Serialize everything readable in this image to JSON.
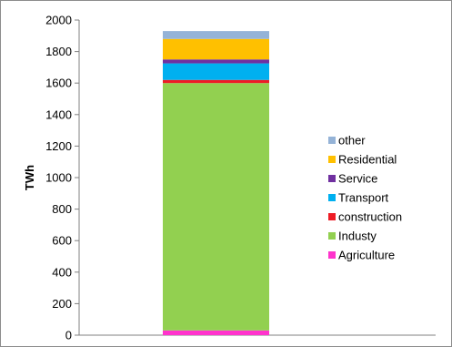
{
  "chart_data": {
    "type": "bar",
    "stacked": true,
    "title": "",
    "xlabel": "",
    "ylabel": "TWh",
    "ylim": [
      0,
      2000
    ],
    "yticks": [
      0,
      200,
      400,
      600,
      800,
      1000,
      1200,
      1400,
      1600,
      1800,
      2000
    ],
    "grid": false,
    "legend_position": "right",
    "categories": [
      ""
    ],
    "series": [
      {
        "name": "Agriculture",
        "color": "#ff33cc",
        "values": [
          30
        ]
      },
      {
        "name": "Industy",
        "color": "#92d050",
        "values": [
          1570
        ]
      },
      {
        "name": "construction",
        "color": "#ee1c25",
        "values": [
          20
        ]
      },
      {
        "name": "Transport",
        "color": "#00b0f0",
        "values": [
          105
        ]
      },
      {
        "name": "Service",
        "color": "#7030a0",
        "values": [
          25
        ]
      },
      {
        "name": "Residential",
        "color": "#ffc000",
        "values": [
          130
        ]
      },
      {
        "name": "other",
        "color": "#95b3d7",
        "values": [
          50
        ]
      }
    ]
  }
}
